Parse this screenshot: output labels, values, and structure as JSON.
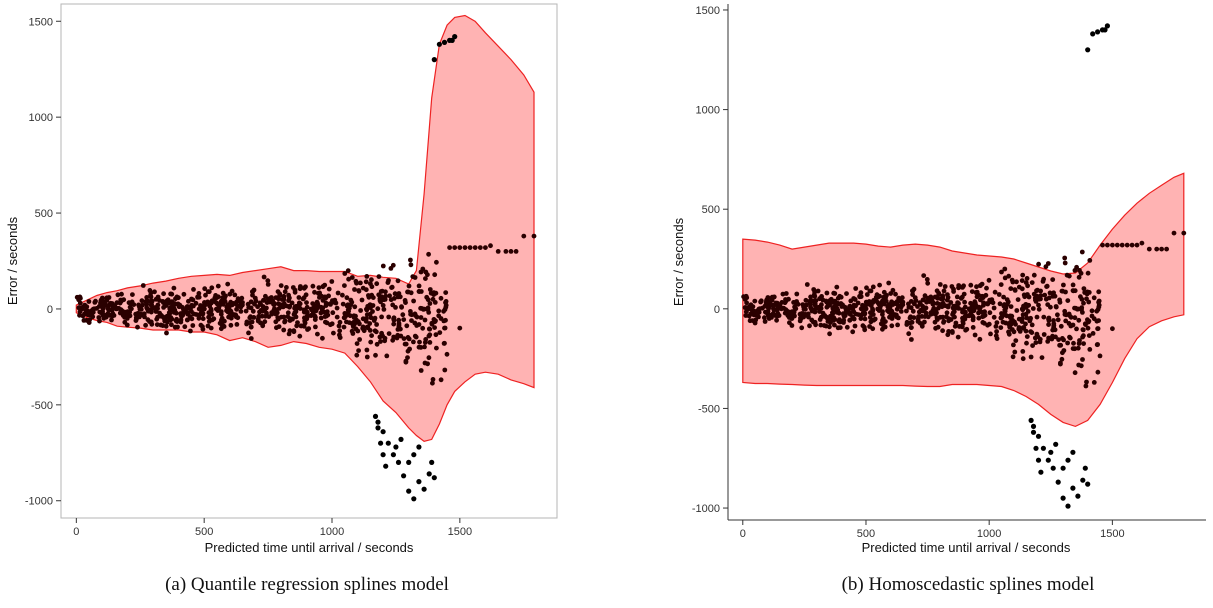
{
  "chart_data": [
    {
      "type": "scatter",
      "xlabel": "Predicted time until arrival / seconds",
      "ylabel": "Error / seconds",
      "xlim": [
        -60,
        1880
      ],
      "ylim": [
        -1090,
        1590
      ],
      "x_ticks": [
        0,
        500,
        1000,
        1500
      ],
      "y_ticks": [
        -1000,
        -500,
        0,
        500,
        1000,
        1500
      ],
      "panel_border": true,
      "caption": "(a) Quantile regression splines model",
      "series": [
        {
          "kind": "band",
          "fill": "#ffb3b3",
          "stroke": "#ee2222",
          "x": [
            0,
            40,
            80,
            120,
            160,
            200,
            250,
            300,
            350,
            400,
            450,
            500,
            550,
            600,
            650,
            700,
            750,
            800,
            850,
            900,
            950,
            1000,
            1050,
            1100,
            1150,
            1200,
            1250,
            1300,
            1330,
            1360,
            1390,
            1420,
            1450,
            1480,
            1520,
            1560,
            1600,
            1650,
            1700,
            1750,
            1790
          ],
          "upper": [
            20,
            45,
            70,
            85,
            95,
            110,
            120,
            135,
            145,
            160,
            170,
            175,
            180,
            175,
            190,
            200,
            210,
            220,
            200,
            200,
            195,
            195,
            195,
            170,
            175,
            165,
            160,
            130,
            200,
            600,
            1100,
            1380,
            1480,
            1520,
            1530,
            1500,
            1440,
            1370,
            1300,
            1220,
            1130
          ],
          "lower": [
            -20,
            -45,
            -60,
            -70,
            -90,
            -95,
            -100,
            -110,
            -110,
            -110,
            -120,
            -120,
            -135,
            -165,
            -150,
            -170,
            -200,
            -190,
            -170,
            -180,
            -200,
            -210,
            -230,
            -300,
            -380,
            -480,
            -540,
            -620,
            -660,
            -690,
            -680,
            -600,
            -500,
            -430,
            -380,
            -340,
            -330,
            -340,
            -370,
            -390,
            -410
          ]
        },
        {
          "kind": "points",
          "color": "#000000",
          "outlier_x": [
            1400,
            1420,
            1440,
            1460,
            1470,
            1480,
            1170,
            1180,
            1190,
            1200,
            1210,
            1220,
            1240,
            1260,
            1280,
            1300,
            1320,
            1340,
            1360,
            1380,
            1390,
            1400,
            1180,
            1200,
            1250,
            1270,
            1300,
            1320,
            1340
          ],
          "outlier_y": [
            1300,
            1380,
            1390,
            1400,
            1400,
            1420,
            -560,
            -620,
            -700,
            -760,
            -820,
            -700,
            -760,
            -800,
            -870,
            -950,
            -990,
            -900,
            -940,
            -860,
            -800,
            -880,
            -590,
            -640,
            -720,
            -680,
            -800,
            -760,
            -720
          ]
        }
      ]
    },
    {
      "type": "scatter",
      "xlabel": "Predicted time until arrival / seconds",
      "ylabel": "Error / seconds",
      "xlim": [
        -60,
        1880
      ],
      "ylim": [
        -1060,
        1530
      ],
      "x_ticks": [
        0,
        500,
        1000,
        1500
      ],
      "y_ticks": [
        -1000,
        -500,
        0,
        500,
        1000,
        1500
      ],
      "panel_border": false,
      "caption": "(b) Homoscedastic splines model",
      "series": [
        {
          "kind": "band",
          "fill": "#ffb3b3",
          "stroke": "#ee2222",
          "x": [
            0,
            50,
            100,
            150,
            200,
            250,
            300,
            350,
            400,
            450,
            500,
            550,
            600,
            650,
            700,
            750,
            800,
            850,
            900,
            950,
            1000,
            1050,
            1100,
            1150,
            1200,
            1250,
            1300,
            1350,
            1400,
            1450,
            1500,
            1550,
            1600,
            1650,
            1700,
            1750,
            1790
          ],
          "upper": [
            350,
            345,
            335,
            320,
            300,
            310,
            320,
            330,
            330,
            330,
            325,
            315,
            310,
            320,
            325,
            320,
            310,
            290,
            280,
            270,
            265,
            260,
            250,
            230,
            210,
            190,
            175,
            180,
            230,
            320,
            400,
            470,
            530,
            580,
            620,
            660,
            680
          ],
          "lower": [
            -370,
            -375,
            -375,
            -378,
            -380,
            -383,
            -385,
            -385,
            -385,
            -385,
            -385,
            -385,
            -385,
            -385,
            -388,
            -390,
            -390,
            -380,
            -380,
            -380,
            -385,
            -390,
            -410,
            -440,
            -480,
            -530,
            -570,
            -590,
            -560,
            -480,
            -370,
            -250,
            -150,
            -90,
            -60,
            -40,
            -30
          ]
        },
        {
          "kind": "points",
          "color": "#000000",
          "outlier_x": [
            1400,
            1420,
            1440,
            1460,
            1470,
            1480,
            1170,
            1180,
            1190,
            1200,
            1210,
            1220,
            1240,
            1260,
            1280,
            1300,
            1320,
            1340,
            1360,
            1380,
            1390,
            1400,
            1180,
            1200,
            1250,
            1270,
            1300,
            1320,
            1340
          ],
          "outlier_y": [
            1300,
            1380,
            1390,
            1400,
            1400,
            1420,
            -560,
            -620,
            -700,
            -760,
            -820,
            -700,
            -760,
            -800,
            -870,
            -950,
            -990,
            -900,
            -940,
            -860,
            -800,
            -880,
            -590,
            -640,
            -720,
            -680,
            -800,
            -760,
            -720
          ]
        }
      ]
    }
  ]
}
